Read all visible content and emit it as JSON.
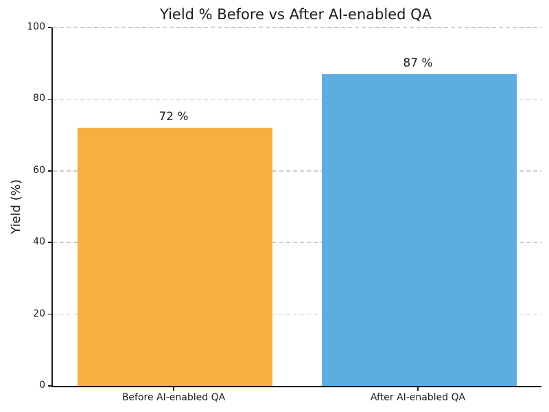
{
  "chart_data": {
    "type": "bar",
    "title": "Yield % Before vs After AI-enabled QA",
    "categories": [
      "Before AI-enabled QA",
      "After AI-enabled QA"
    ],
    "values": [
      72,
      87
    ],
    "value_labels": [
      "72 %",
      "87 %"
    ],
    "bar_colors": [
      "#F5B041",
      "#5DADE2"
    ],
    "xlabel": "",
    "ylabel": "Yield (%)",
    "ylim": [
      0,
      100
    ],
    "yticks": [
      0,
      20,
      40,
      60,
      80,
      100
    ],
    "grid": {
      "axis": "y",
      "style": "dashed",
      "color": "#cccccc"
    },
    "legend": "none",
    "axis_color": "#1a1a1a",
    "text_color": "#1a1a1a"
  }
}
